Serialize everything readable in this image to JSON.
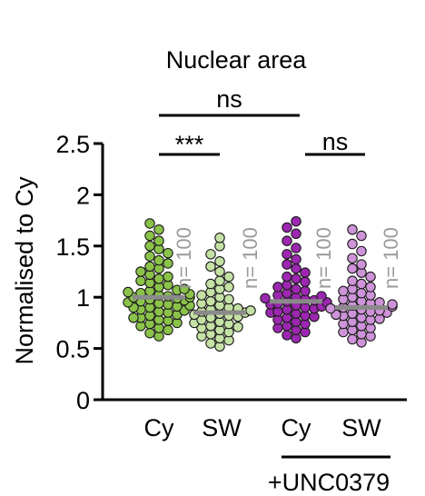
{
  "chart_data": {
    "type": "scatter",
    "title": "Nuclear area",
    "ylabel": "Normalised to Cy",
    "xlabel": "",
    "ylim": [
      0,
      2.5
    ],
    "yticks": [
      "0",
      "0.5",
      "1",
      "1.5",
      "2",
      "2.5"
    ],
    "ytick_values": [
      0,
      0.5,
      1,
      1.5,
      2,
      2.5
    ],
    "categories": [
      "Cy",
      "SW",
      "Cy",
      "SW"
    ],
    "group_label": "+UNC0379",
    "grid": false,
    "series": [
      {
        "category": "Cy",
        "color": "#8BC34A",
        "mean": 1.0,
        "n_label": "n= 100",
        "values": [
          0.62,
          0.65,
          0.68,
          0.7,
          0.72,
          0.74,
          0.75,
          0.77,
          0.78,
          0.8,
          0.8,
          0.82,
          0.83,
          0.85,
          0.86,
          0.87,
          0.88,
          0.9,
          0.9,
          0.91,
          0.92,
          0.93,
          0.94,
          0.95,
          0.96,
          0.97,
          0.98,
          0.99,
          1.0,
          1.0,
          1.01,
          1.02,
          1.03,
          1.04,
          1.05,
          1.06,
          1.07,
          1.08,
          1.1,
          1.12,
          1.14,
          1.16,
          1.18,
          1.2,
          1.22,
          1.25,
          1.28,
          1.3,
          1.33,
          1.36,
          1.4,
          1.43,
          1.47,
          1.5,
          1.55,
          1.6,
          1.66,
          1.72
        ]
      },
      {
        "category": "SW",
        "color": "#C5E1A5",
        "mean": 0.85,
        "n_label": "n= 100",
        "values": [
          0.52,
          0.55,
          0.58,
          0.6,
          0.62,
          0.64,
          0.66,
          0.68,
          0.7,
          0.71,
          0.72,
          0.74,
          0.75,
          0.76,
          0.78,
          0.8,
          0.81,
          0.82,
          0.83,
          0.84,
          0.85,
          0.86,
          0.87,
          0.88,
          0.89,
          0.9,
          0.92,
          0.94,
          0.96,
          0.98,
          1.0,
          1.02,
          1.05,
          1.08,
          1.1,
          1.13,
          1.16,
          1.2,
          1.25,
          1.3,
          1.35,
          1.42,
          1.5,
          1.58
        ]
      },
      {
        "category": "Cy",
        "color": "#9C27B0",
        "mean": 0.96,
        "n_label": "n= 100",
        "values": [
          0.6,
          0.63,
          0.66,
          0.68,
          0.7,
          0.72,
          0.74,
          0.76,
          0.78,
          0.8,
          0.81,
          0.82,
          0.84,
          0.85,
          0.86,
          0.88,
          0.89,
          0.9,
          0.91,
          0.92,
          0.93,
          0.94,
          0.95,
          0.96,
          0.97,
          0.98,
          0.99,
          1.0,
          1.01,
          1.02,
          1.04,
          1.06,
          1.08,
          1.1,
          1.12,
          1.15,
          1.18,
          1.2,
          1.24,
          1.28,
          1.32,
          1.37,
          1.42,
          1.48,
          1.55,
          1.62,
          1.68,
          1.74
        ]
      },
      {
        "category": "SW",
        "color": "#CE93D8",
        "mean": 0.9,
        "n_label": "n= 100",
        "values": [
          0.56,
          0.59,
          0.62,
          0.64,
          0.66,
          0.68,
          0.7,
          0.72,
          0.74,
          0.76,
          0.78,
          0.79,
          0.8,
          0.82,
          0.83,
          0.84,
          0.85,
          0.86,
          0.87,
          0.88,
          0.89,
          0.9,
          0.91,
          0.92,
          0.93,
          0.94,
          0.95,
          0.96,
          0.98,
          1.0,
          1.02,
          1.04,
          1.06,
          1.08,
          1.1,
          1.13,
          1.16,
          1.2,
          1.24,
          1.28,
          1.32,
          1.38,
          1.45,
          1.52,
          1.6,
          1.66
        ]
      }
    ],
    "comparisons": [
      {
        "from": 0,
        "to": 1,
        "label": "***"
      },
      {
        "from": 2,
        "to": 3,
        "label": "ns"
      },
      {
        "from": 0,
        "to": 2,
        "label": "ns"
      }
    ]
  }
}
